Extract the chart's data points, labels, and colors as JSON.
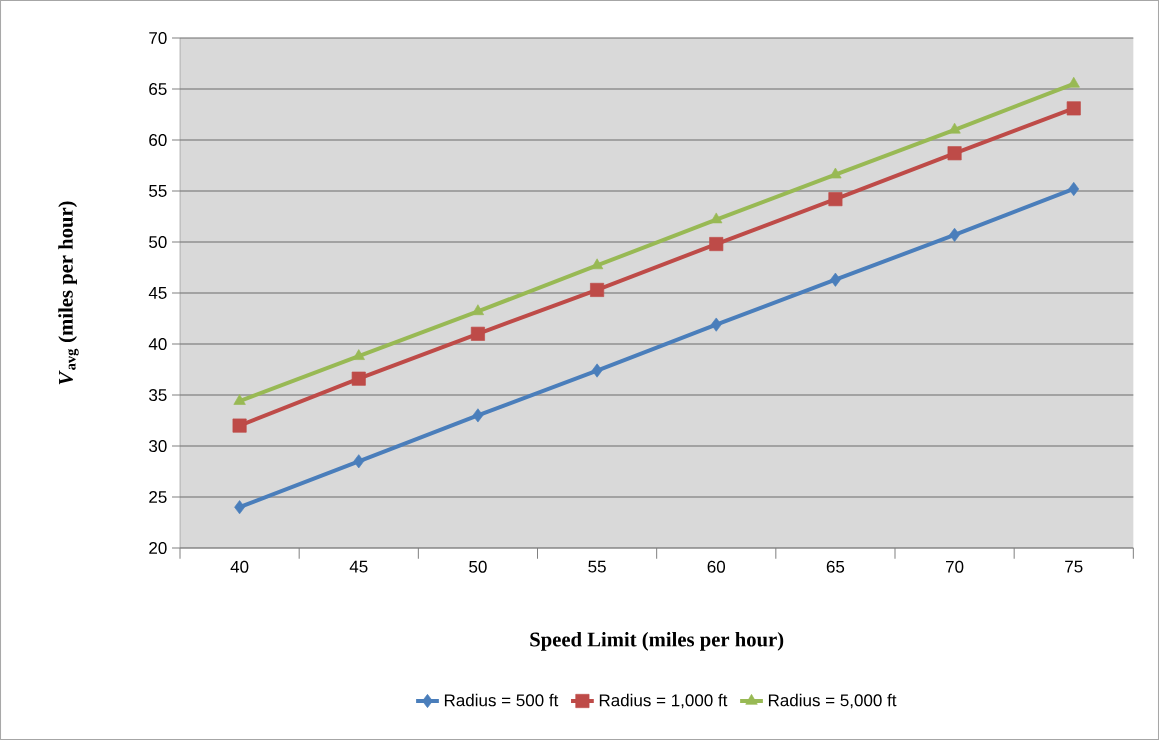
{
  "chart_data": {
    "type": "line",
    "xlabel": "Speed Limit (miles per hour)",
    "ylabel": "*V*$_{avg}$ (miles per hour)",
    "categories": [
      "40",
      "45",
      "50",
      "55",
      "60",
      "65",
      "70",
      "75"
    ],
    "ylim": [
      20,
      70
    ],
    "yticks": [
      20,
      25,
      30,
      35,
      40,
      45,
      50,
      55,
      60,
      65,
      70
    ],
    "grid": "y",
    "legend": "bottom",
    "line_style": "solid",
    "series": [
      {
        "name": "Radius = 500 ft",
        "color": "#4a7ebb",
        "marker": "diamond",
        "values": [
          24,
          28.5,
          33,
          37.4,
          41.9,
          46.3,
          50.7,
          55.2
        ]
      },
      {
        "name": "Radius = 1,000 ft",
        "color": "#be4b48",
        "marker": "square",
        "values": [
          32,
          36.6,
          41,
          45.3,
          49.8,
          54.2,
          58.7,
          63.1
        ]
      },
      {
        "name": "Radius = 5,000 ft",
        "color": "#98b954",
        "marker": "triangle",
        "values": [
          34.4,
          38.8,
          43.2,
          47.7,
          52.2,
          56.6,
          61,
          65.5
        ]
      }
    ]
  }
}
